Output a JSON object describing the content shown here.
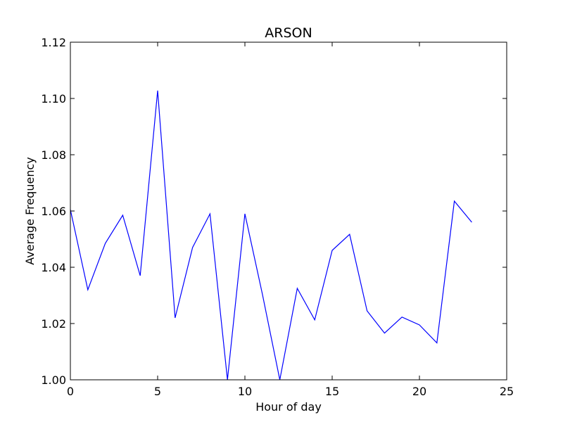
{
  "chart_data": {
    "type": "line",
    "title": "ARSON",
    "xlabel": "Hour of day",
    "ylabel": "Average Frequency",
    "xlim": [
      0,
      25
    ],
    "ylim": [
      1.0,
      1.12
    ],
    "xticks": [
      0,
      5,
      10,
      15,
      20,
      25
    ],
    "yticks": [
      1.0,
      1.02,
      1.04,
      1.06,
      1.08,
      1.1,
      1.12
    ],
    "xtick_labels": [
      "0",
      "5",
      "10",
      "15",
      "20",
      "25"
    ],
    "ytick_labels": [
      "1.00",
      "1.02",
      "1.04",
      "1.06",
      "1.08",
      "1.10",
      "1.12"
    ],
    "grid": false,
    "series": [
      {
        "color": "#0000ff",
        "x": [
          0,
          1,
          2,
          3,
          4,
          5,
          6,
          7,
          8,
          9,
          10,
          11,
          12,
          13,
          14,
          15,
          16,
          17,
          18,
          19,
          20,
          21,
          22,
          23
        ],
        "y": [
          1.0605,
          1.032,
          1.0485,
          1.0585,
          1.037,
          1.1028,
          1.022,
          1.047,
          1.059,
          1.0,
          1.059,
          1.0305,
          1.0,
          1.0325,
          1.0213,
          1.046,
          1.0517,
          1.0245,
          1.0166,
          1.0223,
          1.0195,
          1.0131,
          1.0635,
          1.056
        ]
      }
    ]
  }
}
